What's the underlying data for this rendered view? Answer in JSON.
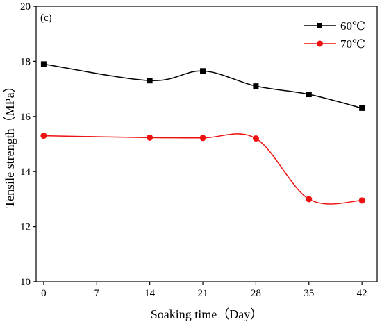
{
  "chart_data": {
    "type": "line",
    "panel_label": "(c)",
    "xlabel": "Soaking time（Day）",
    "ylabel": "Tensile strength（MPa）",
    "xlim": [
      -1,
      44
    ],
    "ylim": [
      10,
      20
    ],
    "x_ticks": [
      0,
      7,
      14,
      21,
      28,
      35,
      42
    ],
    "y_ticks": [
      10,
      12,
      14,
      16,
      18,
      20
    ],
    "legend_position": "top-right",
    "grid": false,
    "series": [
      {
        "name": "60℃",
        "color": "#000000",
        "marker": "square",
        "x": [
          0,
          14,
          21,
          28,
          35,
          42
        ],
        "y": [
          17.9,
          17.3,
          17.65,
          17.1,
          16.8,
          16.3
        ]
      },
      {
        "name": "70℃",
        "color": "#ee1111",
        "marker": "circle",
        "x": [
          0,
          14,
          21,
          28,
          35,
          42
        ],
        "y": [
          15.3,
          15.23,
          15.22,
          15.2,
          13.0,
          12.95
        ]
      }
    ]
  }
}
